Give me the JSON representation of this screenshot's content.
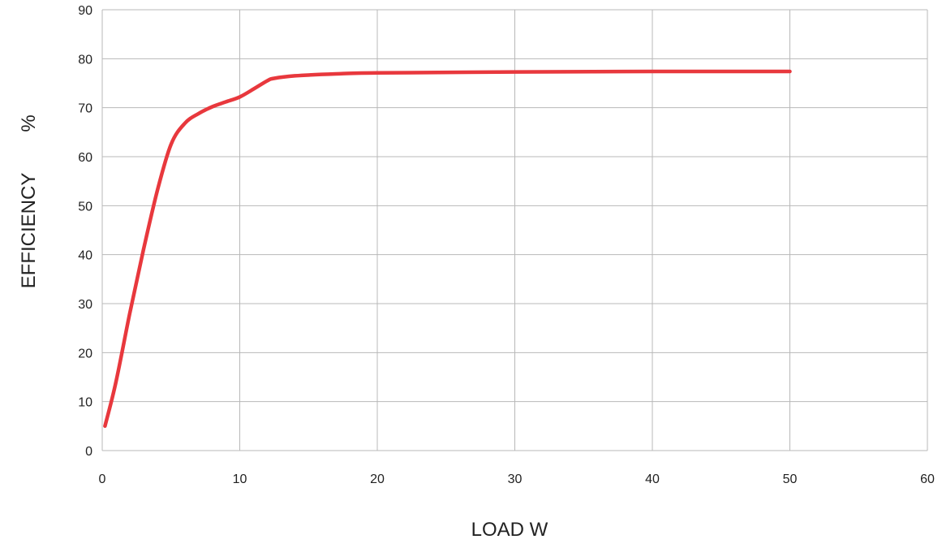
{
  "chart_data": {
    "type": "line",
    "title": "",
    "xlabel": "LOAD W",
    "ylabel": "EFFICIENCY",
    "ylabel_unit": "%",
    "xlim": [
      0,
      60
    ],
    "ylim": [
      0,
      90
    ],
    "x_ticks": [
      "0",
      "10",
      "20",
      "30",
      "40",
      "50",
      "60"
    ],
    "y_ticks": [
      "0",
      "10",
      "20",
      "30",
      "40",
      "50",
      "60",
      "70",
      "80",
      "90"
    ],
    "grid": true,
    "line_color": "#e8383d",
    "series": [
      {
        "x": [
          0.2,
          1,
          2,
          3,
          4,
          5,
          6,
          7,
          8,
          9,
          10,
          11,
          12,
          12.5,
          14,
          17,
          20,
          30,
          40,
          50
        ],
        "values": [
          5,
          14,
          28,
          41,
          53,
          62.5,
          66.8,
          68.8,
          70.2,
          71.2,
          72.2,
          73.8,
          75.5,
          76,
          76.5,
          76.9,
          77.1,
          77.3,
          77.4,
          77.4
        ]
      }
    ]
  }
}
